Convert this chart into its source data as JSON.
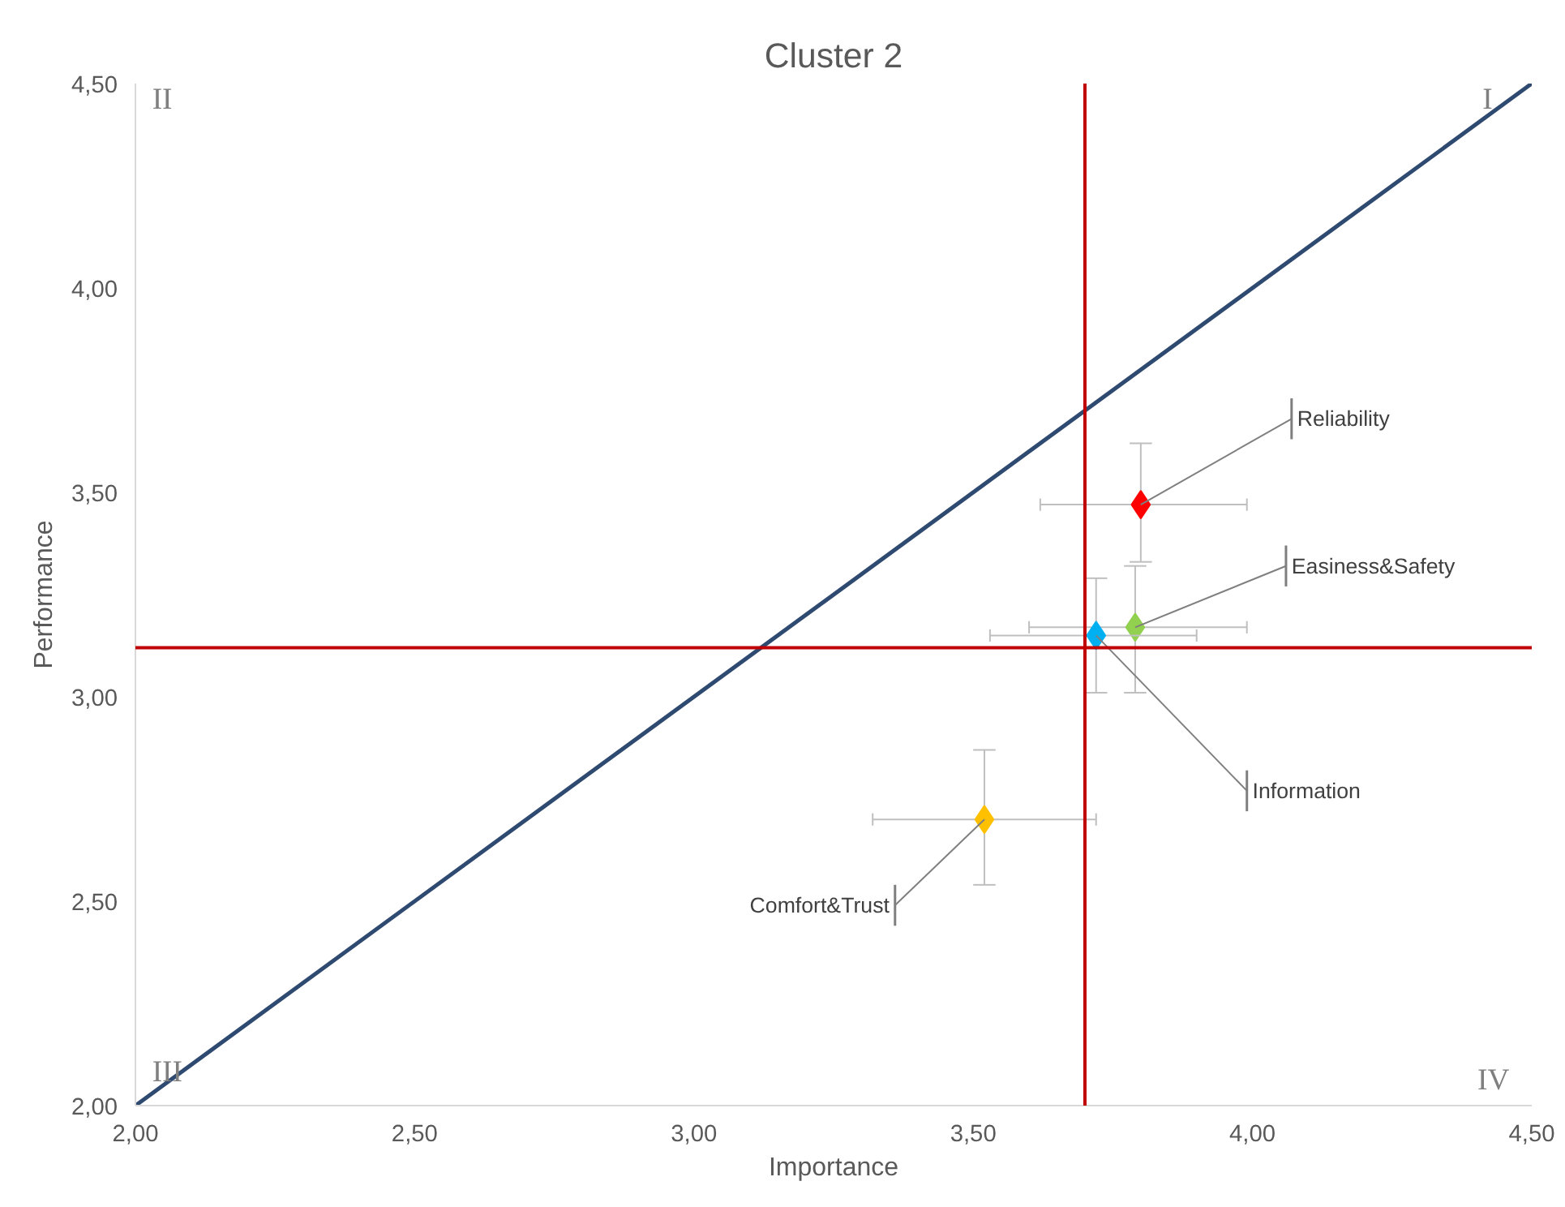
{
  "chart_data": {
    "type": "scatter",
    "title": "Cluster 2",
    "xlabel": "Importance",
    "ylabel": "Performance",
    "xlim": [
      2,
      4.5
    ],
    "ylim": [
      2,
      4.5
    ],
    "xticks": [
      {
        "value": 2,
        "label": "2,00"
      },
      {
        "value": 2.5,
        "label": "2,50"
      },
      {
        "value": 3,
        "label": "3,00"
      },
      {
        "value": 3.5,
        "label": "3,50"
      },
      {
        "value": 4,
        "label": "4,00"
      },
      {
        "value": 4.5,
        "label": "4,50"
      }
    ],
    "yticks": [
      {
        "value": 2,
        "label": "2,00"
      },
      {
        "value": 2.5,
        "label": "2,50"
      },
      {
        "value": 3,
        "label": "3,00"
      },
      {
        "value": 3.5,
        "label": "3,50"
      },
      {
        "value": 4,
        "label": "4,00"
      },
      {
        "value": 4.5,
        "label": "4,50"
      }
    ],
    "marker": "diamond",
    "series": [
      {
        "name": "Reliability",
        "color": "#ff0000",
        "x": [
          3.8
        ],
        "values": [
          3.47
        ],
        "xerrors": [
          [
            3.62,
            3.99
          ]
        ],
        "errors": [
          [
            3.33,
            3.62
          ]
        ]
      },
      {
        "name": "Easiness&Safety",
        "color": "#92d050",
        "x": [
          3.79
        ],
        "values": [
          3.17
        ],
        "xerrors": [
          [
            3.6,
            3.99
          ]
        ],
        "errors": [
          [
            3.01,
            3.32
          ]
        ]
      },
      {
        "name": "Information",
        "color": "#00b0f0",
        "x": [
          3.72
        ],
        "values": [
          3.15
        ],
        "xerrors": [
          [
            3.53,
            3.9
          ]
        ],
        "errors": [
          [
            3.01,
            3.29
          ]
        ]
      },
      {
        "name": "Comfort&Trust",
        "color": "#ffc000",
        "x": [
          3.52
        ],
        "values": [
          2.7
        ],
        "xerrors": [
          [
            3.32,
            3.72
          ]
        ],
        "errors": [
          [
            2.54,
            2.87
          ]
        ]
      },
      {
        "type": "line",
        "color": "#2f4a70",
        "x": [
          2,
          4.5
        ],
        "values": [
          2,
          4.5
        ],
        "marker": "none"
      }
    ],
    "ref_lines": [
      {
        "axis": "x",
        "value": 3.7,
        "color": "#c00000"
      },
      {
        "axis": "y",
        "value": 3.12,
        "color": "#c00000"
      }
    ],
    "annotations": [
      "I",
      "II",
      "III",
      "IV"
    ]
  }
}
